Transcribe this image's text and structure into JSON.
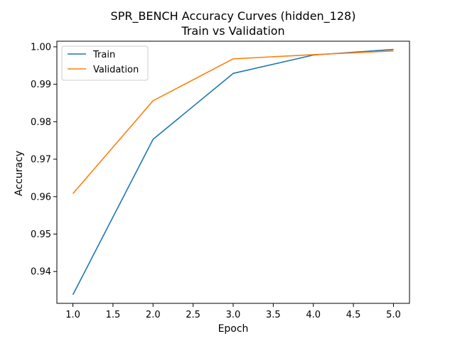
{
  "chart_data": {
    "type": "line",
    "title": "SPR_BENCH Accuracy Curves (hidden_128)",
    "subtitle": "Train vs Validation",
    "xlabel": "Epoch",
    "ylabel": "Accuracy",
    "x": [
      1.0,
      2.0,
      3.0,
      4.0,
      5.0
    ],
    "xlim": [
      0.8,
      5.2
    ],
    "ylim": [
      0.9315,
      1.0015
    ],
    "xticks": [
      1.0,
      1.5,
      2.0,
      2.5,
      3.0,
      3.5,
      4.0,
      4.5,
      5.0
    ],
    "xtick_labels": [
      "1.0",
      "1.5",
      "2.0",
      "2.5",
      "3.0",
      "3.5",
      "4.0",
      "4.5",
      "5.0"
    ],
    "yticks": [
      0.94,
      0.95,
      0.96,
      0.97,
      0.98,
      0.99,
      1.0
    ],
    "ytick_labels": [
      "0.94",
      "0.95",
      "0.96",
      "0.97",
      "0.98",
      "0.99",
      "1.00"
    ],
    "grid": false,
    "legend_position": "upper-left",
    "series": [
      {
        "name": "Train",
        "color": "#1f77b4",
        "values": [
          0.9338,
          0.9753,
          0.9929,
          0.9978,
          0.9993
        ]
      },
      {
        "name": "Validation",
        "color": "#ff7f0e",
        "values": [
          0.9608,
          0.9856,
          0.9968,
          0.9979,
          0.9989
        ]
      }
    ]
  }
}
